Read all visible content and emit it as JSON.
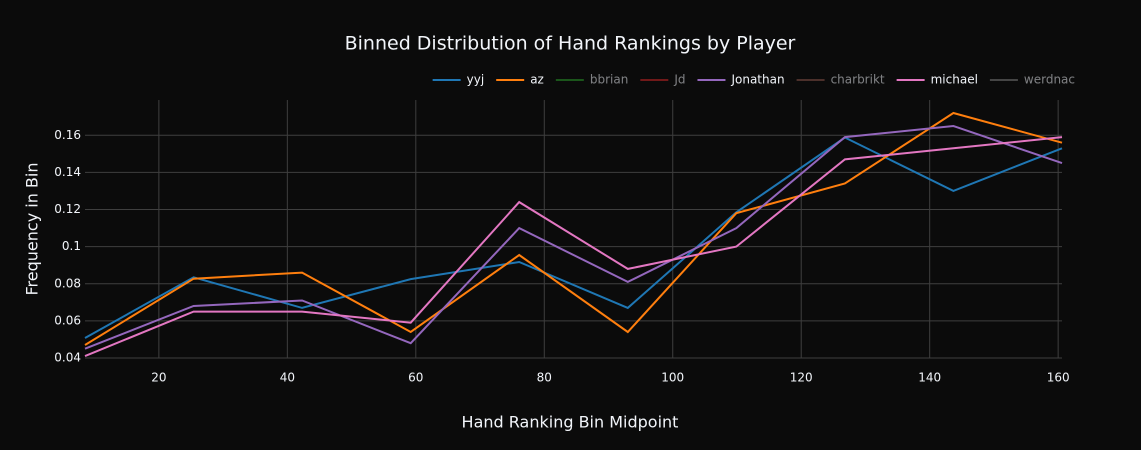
{
  "chart_data": {
    "type": "line",
    "title": "Binned Distribution of Hand Rankings by Player",
    "x_label": "Hand Ranking Bin Midpoint",
    "y_label": "Frequency in Bin",
    "x": [
      8.5,
      25.4,
      42.3,
      59.2,
      76.1,
      93.0,
      109.9,
      126.8,
      143.7,
      160.6
    ],
    "xlim": [
      8.5,
      160.6
    ],
    "xticks": [
      20,
      40,
      60,
      80,
      100,
      120,
      140,
      160
    ],
    "ylim": [
      0.04,
      0.179
    ],
    "yticks": [
      0.04,
      0.06,
      0.08,
      0.1,
      0.12,
      0.14,
      0.16
    ],
    "grid": true,
    "legend": "top-right",
    "series": [
      {
        "name": "yyj",
        "color": "#1f77b4",
        "visible": true,
        "values": [
          0.0508,
          0.0835,
          0.067,
          0.0825,
          0.0917,
          0.067,
          0.1185,
          0.1588,
          0.13,
          0.153
        ]
      },
      {
        "name": "az",
        "color": "#ff7f0e",
        "visible": true,
        "values": [
          0.047,
          0.0827,
          0.086,
          0.054,
          0.0955,
          0.054,
          0.118,
          0.134,
          0.172,
          0.156
        ]
      },
      {
        "name": "bbrian",
        "color": "#2ca02c",
        "visible": false,
        "values": [
          null,
          null,
          null,
          null,
          null,
          null,
          null,
          null,
          null,
          null
        ]
      },
      {
        "name": "Jd",
        "color": "#d62728",
        "visible": false,
        "values": [
          null,
          null,
          null,
          null,
          null,
          null,
          null,
          null,
          null,
          null
        ]
      },
      {
        "name": "Jonathan",
        "color": "#9467bd",
        "visible": true,
        "values": [
          0.045,
          0.068,
          0.071,
          0.048,
          0.11,
          0.081,
          0.11,
          0.159,
          0.165,
          0.145
        ]
      },
      {
        "name": "charbrikt",
        "color": "#8c564b",
        "visible": false,
        "values": [
          null,
          null,
          null,
          null,
          null,
          null,
          null,
          null,
          null,
          null
        ]
      },
      {
        "name": "michael",
        "color": "#e377c2",
        "visible": true,
        "values": [
          0.041,
          0.065,
          0.065,
          0.059,
          0.124,
          0.088,
          0.1,
          0.147,
          0.153,
          0.159
        ]
      },
      {
        "name": "werdnac",
        "color": "#7f7f7f",
        "visible": false,
        "values": [
          null,
          null,
          null,
          null,
          null,
          null,
          null,
          null,
          null,
          null
        ]
      }
    ]
  }
}
